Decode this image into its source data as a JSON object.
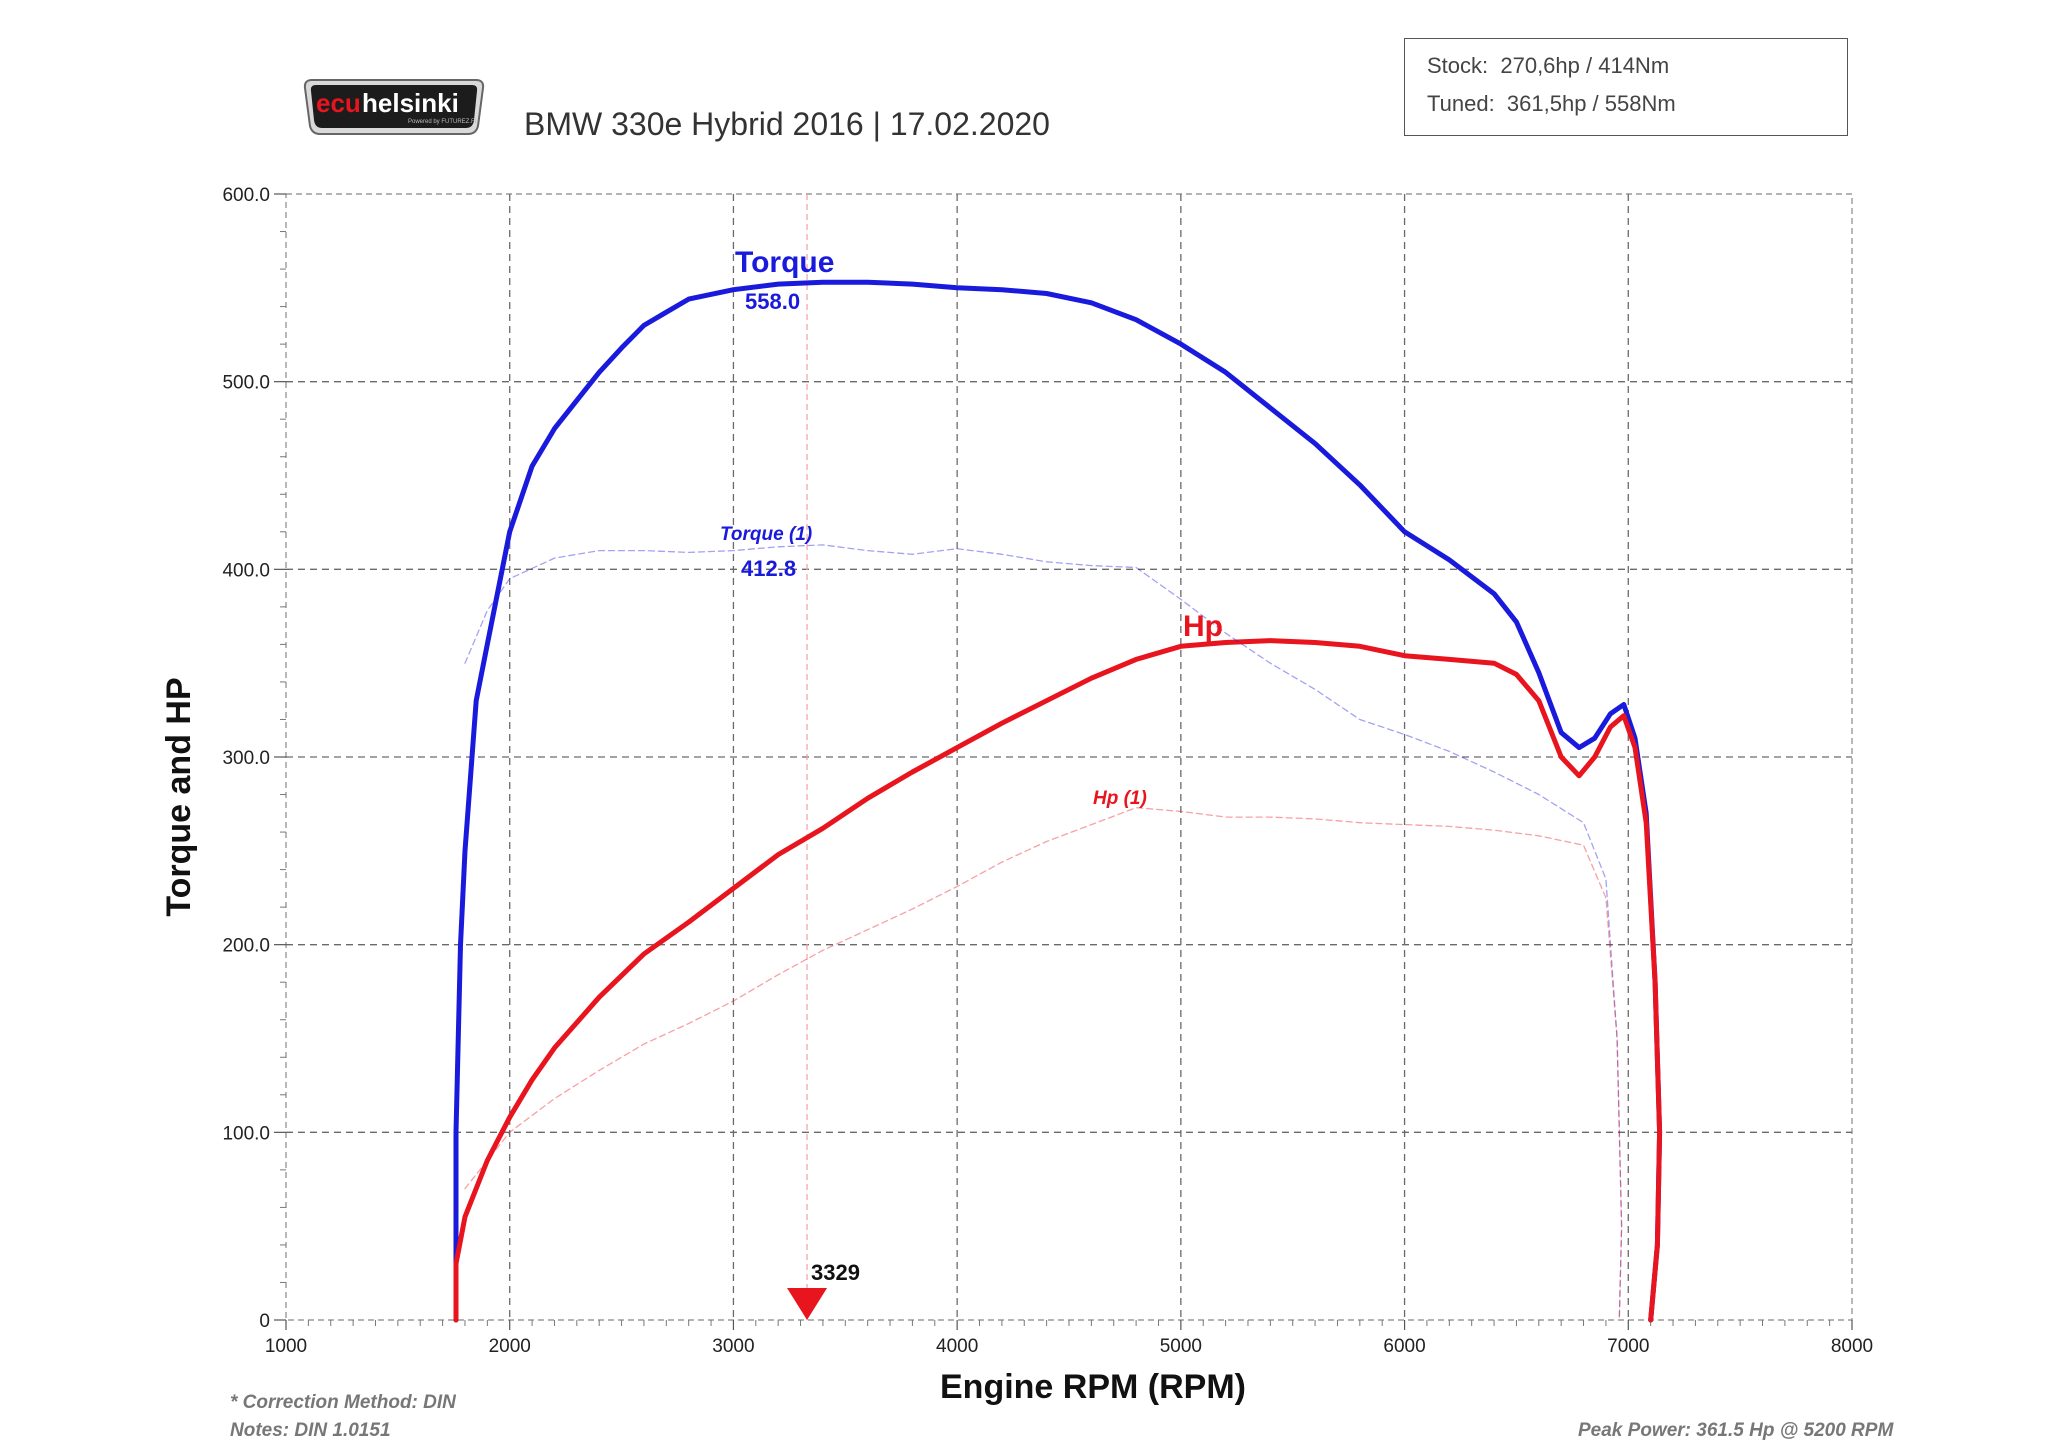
{
  "logo": {
    "text_part1": "ecu",
    "text_part2": "helsinki",
    "tagline": "Powered by FUTUREZ.FI"
  },
  "header": {
    "title": "BMW 330e Hybrid 2016 | 17.02.2020"
  },
  "stock_box": {
    "stock": "Stock:  270,6hp / 414Nm",
    "tuned": "Tuned:  361,5hp / 558Nm"
  },
  "notes": {
    "correction": "* Correction Method: DIN",
    "notes": "Notes: DIN 1.0151",
    "peak_power": "Peak Power: 361.5 Hp @ 5200 RPM"
  },
  "colors": {
    "torque": "#1a1adc",
    "hp": "#e8141e"
  },
  "chart_data": {
    "type": "line",
    "xlabel": "Engine RPM (RPM)",
    "ylabel": "Torque and HP",
    "xlim": [
      1000,
      8000
    ],
    "ylim": [
      0,
      600
    ],
    "x_ticks": [
      1000,
      2000,
      3000,
      4000,
      5000,
      6000,
      7000,
      8000
    ],
    "x_tick_labels": [
      "1000",
      "2000",
      "3000",
      "4000",
      "5000",
      "6000",
      "7000",
      "8000"
    ],
    "y_ticks": [
      0,
      100,
      200,
      300,
      400,
      500,
      600
    ],
    "y_tick_labels": [
      "0",
      "100.0",
      "200.0",
      "300.0",
      "400.0",
      "500.0",
      "600.0"
    ],
    "grid": true,
    "cursor": {
      "rpm": 3329,
      "label": "3329"
    },
    "series": [
      {
        "name": "Torque",
        "value_label": "558.0",
        "style": "solid",
        "color": "#1a1adc",
        "points": [
          [
            1760,
            0
          ],
          [
            1760,
            100
          ],
          [
            1780,
            200
          ],
          [
            1800,
            250
          ],
          [
            1850,
            330
          ],
          [
            1900,
            360
          ],
          [
            2000,
            420
          ],
          [
            2100,
            455
          ],
          [
            2200,
            475
          ],
          [
            2300,
            490
          ],
          [
            2400,
            505
          ],
          [
            2500,
            518
          ],
          [
            2600,
            530
          ],
          [
            2700,
            537
          ],
          [
            2800,
            544
          ],
          [
            3000,
            549
          ],
          [
            3200,
            552
          ],
          [
            3400,
            553
          ],
          [
            3600,
            553
          ],
          [
            3800,
            552
          ],
          [
            4000,
            550
          ],
          [
            4200,
            549
          ],
          [
            4400,
            547
          ],
          [
            4600,
            542
          ],
          [
            4800,
            533
          ],
          [
            5000,
            520
          ],
          [
            5200,
            505
          ],
          [
            5400,
            486
          ],
          [
            5600,
            467
          ],
          [
            5800,
            445
          ],
          [
            6000,
            420
          ],
          [
            6200,
            405
          ],
          [
            6400,
            387
          ],
          [
            6500,
            372
          ],
          [
            6600,
            345
          ],
          [
            6700,
            313
          ],
          [
            6780,
            305
          ],
          [
            6850,
            310
          ],
          [
            6920,
            323
          ],
          [
            6980,
            328
          ],
          [
            7030,
            310
          ],
          [
            7080,
            270
          ],
          [
            7120,
            180
          ],
          [
            7140,
            100
          ],
          [
            7130,
            40
          ],
          [
            7100,
            0
          ]
        ]
      },
      {
        "name": "Hp",
        "value_label": "",
        "style": "solid",
        "color": "#e8141e",
        "points": [
          [
            1760,
            0
          ],
          [
            1760,
            30
          ],
          [
            1800,
            55
          ],
          [
            1900,
            85
          ],
          [
            2000,
            108
          ],
          [
            2100,
            128
          ],
          [
            2200,
            145
          ],
          [
            2400,
            172
          ],
          [
            2600,
            195
          ],
          [
            2800,
            212
          ],
          [
            3000,
            230
          ],
          [
            3200,
            248
          ],
          [
            3400,
            262
          ],
          [
            3600,
            278
          ],
          [
            3800,
            292
          ],
          [
            4000,
            305
          ],
          [
            4200,
            318
          ],
          [
            4400,
            330
          ],
          [
            4600,
            342
          ],
          [
            4800,
            352
          ],
          [
            5000,
            359
          ],
          [
            5200,
            361
          ],
          [
            5400,
            362
          ],
          [
            5600,
            361
          ],
          [
            5800,
            359
          ],
          [
            6000,
            354
          ],
          [
            6200,
            352
          ],
          [
            6400,
            350
          ],
          [
            6500,
            344
          ],
          [
            6600,
            330
          ],
          [
            6700,
            300
          ],
          [
            6780,
            290
          ],
          [
            6850,
            300
          ],
          [
            6920,
            316
          ],
          [
            6980,
            322
          ],
          [
            7030,
            305
          ],
          [
            7080,
            265
          ],
          [
            7120,
            180
          ],
          [
            7140,
            100
          ],
          [
            7130,
            40
          ],
          [
            7100,
            0
          ]
        ]
      },
      {
        "name": "Torque (1)",
        "value_label": "412.8",
        "style": "dashed",
        "color": "#1a1adc",
        "points": [
          [
            1800,
            350
          ],
          [
            1900,
            378
          ],
          [
            2000,
            395
          ],
          [
            2200,
            406
          ],
          [
            2400,
            410
          ],
          [
            2600,
            410
          ],
          [
            2800,
            409
          ],
          [
            3000,
            410
          ],
          [
            3200,
            412
          ],
          [
            3400,
            413
          ],
          [
            3600,
            410
          ],
          [
            3800,
            408
          ],
          [
            4000,
            411
          ],
          [
            4200,
            408
          ],
          [
            4400,
            404
          ],
          [
            4600,
            402
          ],
          [
            4800,
            401
          ],
          [
            5000,
            384
          ],
          [
            5200,
            366
          ],
          [
            5400,
            350
          ],
          [
            5600,
            336
          ],
          [
            5800,
            320
          ],
          [
            6000,
            312
          ],
          [
            6200,
            303
          ],
          [
            6400,
            292
          ],
          [
            6600,
            280
          ],
          [
            6800,
            265
          ],
          [
            6900,
            235
          ],
          [
            6950,
            150
          ],
          [
            6970,
            50
          ],
          [
            6960,
            0
          ]
        ]
      },
      {
        "name": "Hp (1)",
        "value_label": "",
        "style": "dashed",
        "color": "#e8141e",
        "points": [
          [
            1800,
            70
          ],
          [
            1900,
            85
          ],
          [
            2000,
            100
          ],
          [
            2200,
            118
          ],
          [
            2400,
            133
          ],
          [
            2600,
            147
          ],
          [
            2800,
            158
          ],
          [
            3000,
            170
          ],
          [
            3200,
            184
          ],
          [
            3400,
            197
          ],
          [
            3600,
            208
          ],
          [
            3800,
            219
          ],
          [
            4000,
            231
          ],
          [
            4200,
            244
          ],
          [
            4400,
            255
          ],
          [
            4600,
            264
          ],
          [
            4800,
            273
          ],
          [
            5000,
            271
          ],
          [
            5200,
            268
          ],
          [
            5400,
            268
          ],
          [
            5600,
            267
          ],
          [
            5800,
            265
          ],
          [
            6000,
            264
          ],
          [
            6200,
            263
          ],
          [
            6400,
            261
          ],
          [
            6600,
            258
          ],
          [
            6800,
            253
          ],
          [
            6900,
            225
          ],
          [
            6950,
            150
          ],
          [
            6970,
            50
          ],
          [
            6960,
            0
          ]
        ]
      }
    ]
  }
}
